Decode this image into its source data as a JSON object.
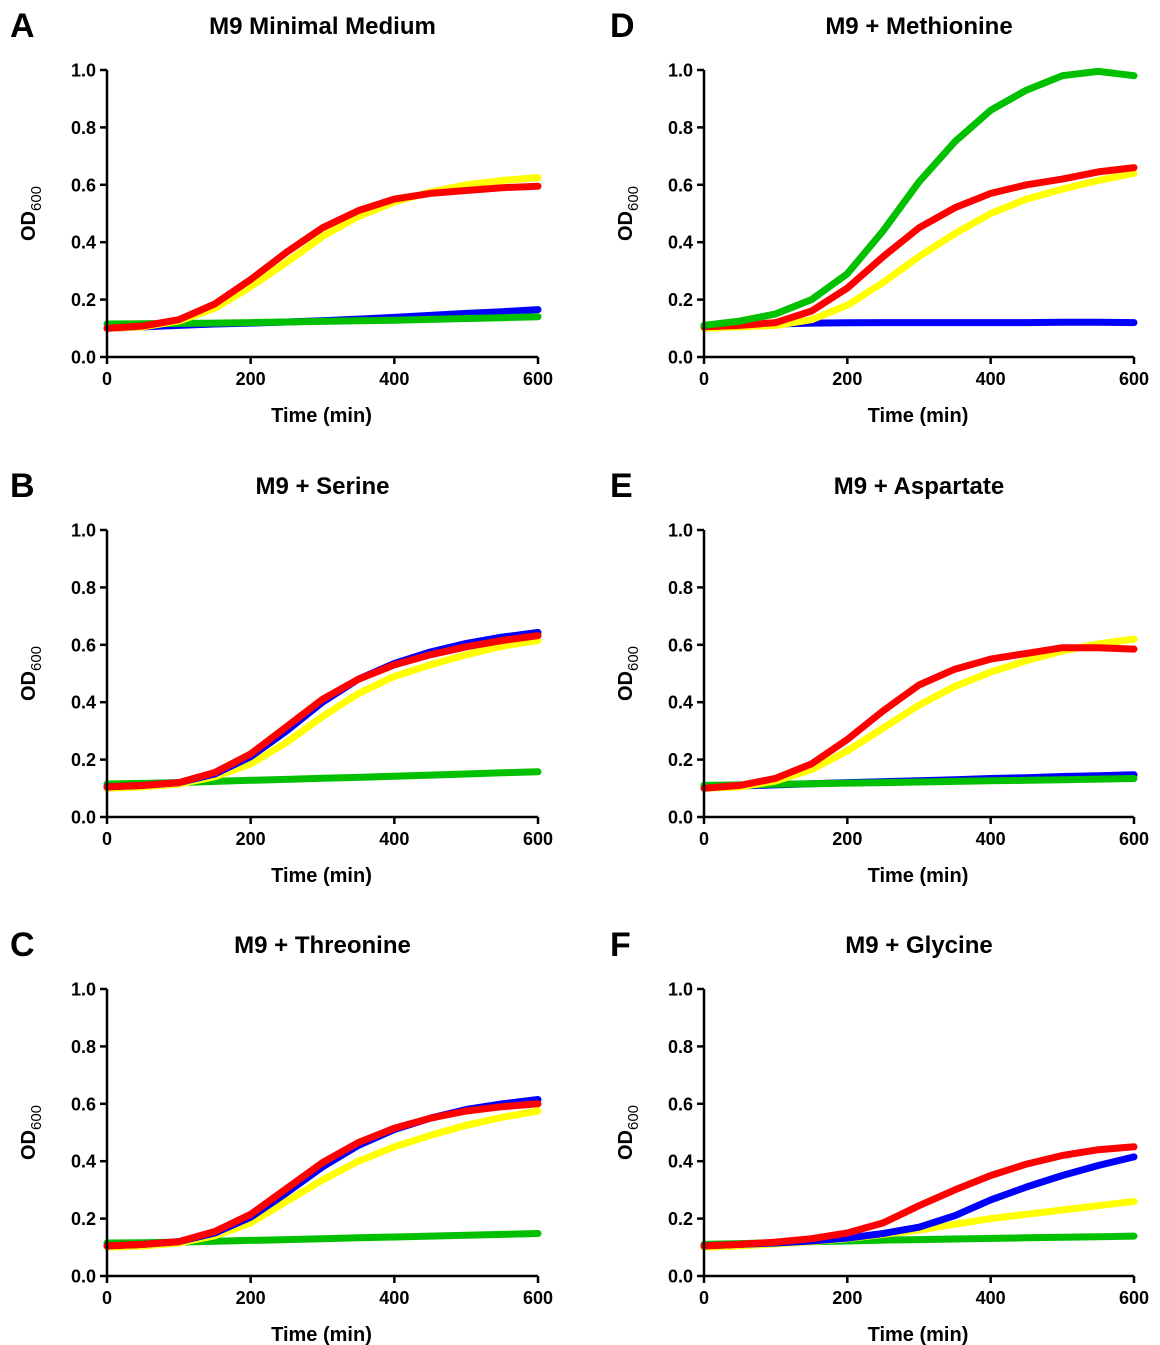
{
  "chart_data": [
    {
      "panel": "A",
      "title": "M9 Minimal Medium",
      "type": "line",
      "xlabel": "Time (min)",
      "ylabel": {
        "main": "OD",
        "sub": "600"
      },
      "xlim": [
        0,
        600
      ],
      "ylim": [
        0,
        1.0
      ],
      "xticks": [
        "0",
        "200",
        "400",
        "600"
      ],
      "yticks": [
        "0.0",
        "0.2",
        "0.4",
        "0.6",
        "0.8",
        "1.0"
      ],
      "grid": false,
      "x": [
        0,
        50,
        100,
        150,
        200,
        250,
        300,
        350,
        400,
        450,
        500,
        550,
        600
      ],
      "series": [
        {
          "color": "#0000ff",
          "values": [
            0.1,
            0.105,
            0.11,
            0.115,
            0.118,
            0.122,
            0.126,
            0.132,
            0.138,
            0.145,
            0.152,
            0.158,
            0.165
          ]
        },
        {
          "color": "#00c000",
          "values": [
            0.115,
            0.116,
            0.117,
            0.118,
            0.12,
            0.122,
            0.124,
            0.126,
            0.128,
            0.131,
            0.134,
            0.137,
            0.14
          ]
        },
        {
          "color": "#ffff00",
          "values": [
            0.1,
            0.105,
            0.125,
            0.17,
            0.245,
            0.33,
            0.42,
            0.49,
            0.54,
            0.575,
            0.6,
            0.615,
            0.625
          ]
        },
        {
          "color": "#ff0000",
          "values": [
            0.1,
            0.108,
            0.13,
            0.185,
            0.27,
            0.365,
            0.45,
            0.51,
            0.55,
            0.57,
            0.58,
            0.59,
            0.595
          ]
        }
      ]
    },
    {
      "panel": "B",
      "title": "M9 + Serine",
      "type": "line",
      "xlabel": "Time (min)",
      "ylabel": {
        "main": "OD",
        "sub": "600"
      },
      "xlim": [
        0,
        600
      ],
      "ylim": [
        0,
        1.0
      ],
      "xticks": [
        "0",
        "200",
        "400",
        "600"
      ],
      "yticks": [
        "0.0",
        "0.2",
        "0.4",
        "0.6",
        "0.8",
        "1.0"
      ],
      "grid": false,
      "x": [
        0,
        50,
        100,
        150,
        200,
        250,
        300,
        350,
        400,
        450,
        500,
        550,
        600
      ],
      "series": [
        {
          "color": "#00c000",
          "values": [
            0.115,
            0.117,
            0.12,
            0.124,
            0.128,
            0.131,
            0.135,
            0.138,
            0.142,
            0.146,
            0.15,
            0.154,
            0.158
          ]
        },
        {
          "color": "#ffff00",
          "values": [
            0.1,
            0.105,
            0.115,
            0.14,
            0.185,
            0.26,
            0.35,
            0.43,
            0.49,
            0.53,
            0.565,
            0.595,
            0.615
          ]
        },
        {
          "color": "#0000ff",
          "values": [
            0.105,
            0.11,
            0.12,
            0.15,
            0.21,
            0.3,
            0.4,
            0.48,
            0.535,
            0.575,
            0.605,
            0.627,
            0.643
          ]
        },
        {
          "color": "#ff0000",
          "values": [
            0.105,
            0.11,
            0.12,
            0.155,
            0.22,
            0.315,
            0.41,
            0.48,
            0.53,
            0.565,
            0.593,
            0.615,
            0.632
          ]
        }
      ]
    },
    {
      "panel": "C",
      "title": "M9 + Threonine",
      "type": "line",
      "xlabel": "Time (min)",
      "ylabel": {
        "main": "OD",
        "sub": "600"
      },
      "xlim": [
        0,
        600
      ],
      "ylim": [
        0,
        1.0
      ],
      "xticks": [
        "0",
        "200",
        "400",
        "600"
      ],
      "yticks": [
        "0.0",
        "0.2",
        "0.4",
        "0.6",
        "0.8",
        "1.0"
      ],
      "grid": false,
      "x": [
        0,
        50,
        100,
        150,
        200,
        250,
        300,
        350,
        400,
        450,
        500,
        550,
        600
      ],
      "series": [
        {
          "color": "#00c000",
          "values": [
            0.115,
            0.116,
            0.118,
            0.121,
            0.124,
            0.127,
            0.13,
            0.133,
            0.136,
            0.139,
            0.142,
            0.145,
            0.148
          ]
        },
        {
          "color": "#ffff00",
          "values": [
            0.1,
            0.105,
            0.115,
            0.14,
            0.185,
            0.26,
            0.335,
            0.4,
            0.45,
            0.49,
            0.525,
            0.553,
            0.575
          ]
        },
        {
          "color": "#0000ff",
          "values": [
            0.105,
            0.11,
            0.12,
            0.15,
            0.205,
            0.29,
            0.38,
            0.455,
            0.51,
            0.55,
            0.58,
            0.6,
            0.615
          ]
        },
        {
          "color": "#ff0000",
          "values": [
            0.105,
            0.11,
            0.12,
            0.155,
            0.215,
            0.305,
            0.395,
            0.465,
            0.515,
            0.55,
            0.575,
            0.59,
            0.6
          ]
        }
      ]
    },
    {
      "panel": "D",
      "title": "M9 + Methionine",
      "type": "line",
      "xlabel": "Time (min)",
      "ylabel": {
        "main": "OD",
        "sub": "600"
      },
      "xlim": [
        0,
        600
      ],
      "ylim": [
        0,
        1.0
      ],
      "xticks": [
        "0",
        "200",
        "400",
        "600"
      ],
      "yticks": [
        "0.0",
        "0.2",
        "0.4",
        "0.6",
        "0.8",
        "1.0"
      ],
      "grid": false,
      "x": [
        0,
        50,
        100,
        150,
        200,
        250,
        300,
        350,
        400,
        450,
        500,
        550,
        600
      ],
      "series": [
        {
          "color": "#0000ff",
          "values": [
            0.105,
            0.11,
            0.115,
            0.118,
            0.119,
            0.12,
            0.12,
            0.12,
            0.12,
            0.12,
            0.121,
            0.121,
            0.12
          ]
        },
        {
          "color": "#ffff00",
          "values": [
            0.1,
            0.105,
            0.11,
            0.13,
            0.18,
            0.26,
            0.35,
            0.43,
            0.5,
            0.55,
            0.585,
            0.615,
            0.64
          ]
        },
        {
          "color": "#ff0000",
          "values": [
            0.105,
            0.11,
            0.12,
            0.16,
            0.24,
            0.35,
            0.45,
            0.52,
            0.57,
            0.6,
            0.62,
            0.645,
            0.66
          ]
        },
        {
          "color": "#00c000",
          "values": [
            0.11,
            0.125,
            0.15,
            0.2,
            0.29,
            0.44,
            0.61,
            0.75,
            0.86,
            0.93,
            0.98,
            0.995,
            0.98
          ]
        }
      ]
    },
    {
      "panel": "E",
      "title": "M9 + Aspartate",
      "type": "line",
      "xlabel": "Time (min)",
      "ylabel": {
        "main": "OD",
        "sub": "600"
      },
      "xlim": [
        0,
        600
      ],
      "ylim": [
        0,
        1.0
      ],
      "xticks": [
        "0",
        "200",
        "400",
        "600"
      ],
      "yticks": [
        "0.0",
        "0.2",
        "0.4",
        "0.6",
        "0.8",
        "1.0"
      ],
      "grid": false,
      "x": [
        0,
        50,
        100,
        150,
        200,
        250,
        300,
        350,
        400,
        450,
        500,
        550,
        600
      ],
      "series": [
        {
          "color": "#0000ff",
          "values": [
            0.105,
            0.108,
            0.112,
            0.116,
            0.12,
            0.123,
            0.126,
            0.13,
            0.134,
            0.137,
            0.141,
            0.144,
            0.147
          ]
        },
        {
          "color": "#00c000",
          "values": [
            0.11,
            0.112,
            0.114,
            0.116,
            0.118,
            0.12,
            0.122,
            0.124,
            0.126,
            0.128,
            0.13,
            0.132,
            0.134
          ]
        },
        {
          "color": "#ffff00",
          "values": [
            0.1,
            0.105,
            0.125,
            0.165,
            0.23,
            0.31,
            0.39,
            0.455,
            0.505,
            0.545,
            0.578,
            0.603,
            0.62
          ]
        },
        {
          "color": "#ff0000",
          "values": [
            0.1,
            0.11,
            0.135,
            0.185,
            0.27,
            0.37,
            0.46,
            0.515,
            0.55,
            0.57,
            0.59,
            0.59,
            0.585
          ]
        }
      ]
    },
    {
      "panel": "F",
      "title": "M9 + Glycine",
      "type": "line",
      "xlabel": "Time (min)",
      "ylabel": {
        "main": "OD",
        "sub": "600"
      },
      "xlim": [
        0,
        600
      ],
      "ylim": [
        0,
        1.0
      ],
      "xticks": [
        "0",
        "200",
        "400",
        "600"
      ],
      "yticks": [
        "0.0",
        "0.2",
        "0.4",
        "0.6",
        "0.8",
        "1.0"
      ],
      "grid": false,
      "x": [
        0,
        50,
        100,
        150,
        200,
        250,
        300,
        350,
        400,
        450,
        500,
        550,
        600
      ],
      "series": [
        {
          "color": "#00c000",
          "values": [
            0.11,
            0.113,
            0.116,
            0.119,
            0.122,
            0.125,
            0.127,
            0.129,
            0.131,
            0.133,
            0.135,
            0.137,
            0.139
          ]
        },
        {
          "color": "#ffff00",
          "values": [
            0.1,
            0.105,
            0.112,
            0.12,
            0.13,
            0.145,
            0.16,
            0.18,
            0.2,
            0.215,
            0.23,
            0.245,
            0.26
          ]
        },
        {
          "color": "#0000ff",
          "values": [
            0.105,
            0.11,
            0.115,
            0.122,
            0.132,
            0.148,
            0.17,
            0.21,
            0.265,
            0.31,
            0.35,
            0.385,
            0.415
          ]
        },
        {
          "color": "#ff0000",
          "values": [
            0.105,
            0.11,
            0.118,
            0.13,
            0.15,
            0.185,
            0.245,
            0.3,
            0.35,
            0.39,
            0.42,
            0.44,
            0.45
          ]
        }
      ]
    }
  ]
}
